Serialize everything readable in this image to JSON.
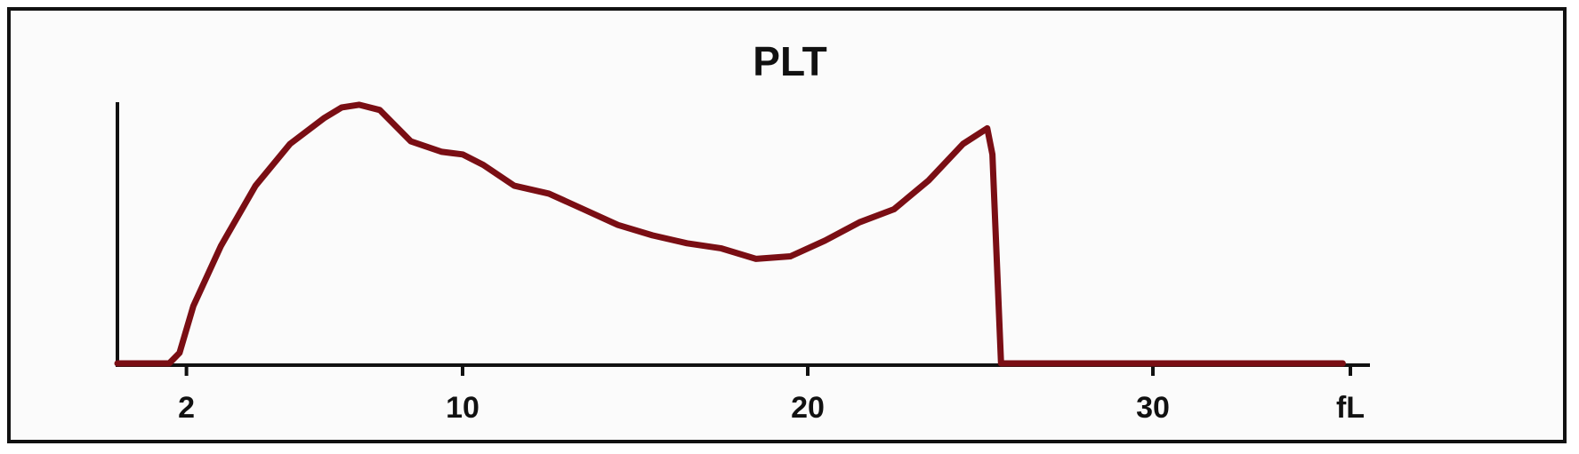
{
  "chart_data": {
    "type": "line",
    "title": "PLT",
    "xlabel": "",
    "ylabel": "",
    "unit_label": "fL",
    "xlim": [
      0,
      35
    ],
    "ylim": [
      0,
      100
    ],
    "xticks": [
      2,
      10,
      20,
      30
    ],
    "grid": false,
    "series": [
      {
        "x": [
          0,
          1.5,
          1.8,
          2.2,
          3,
          4,
          5,
          6,
          6.5,
          7,
          7.6,
          8.5,
          9.4,
          10,
          10.6,
          11.5,
          12.5,
          13.5,
          14.5,
          15.5,
          16.5,
          17.5,
          18.5,
          19.5,
          20.5,
          21.5,
          22.5,
          23.5,
          24.5,
          25.2,
          25.35,
          25.6,
          35.5
        ],
        "y": [
          0,
          0,
          4,
          22,
          45,
          68,
          84,
          94,
          98,
          99,
          97,
          85,
          81,
          80,
          76,
          68,
          65,
          59,
          53,
          49,
          46,
          44,
          40,
          41,
          47,
          54,
          59,
          70,
          84,
          90,
          80,
          0,
          0
        ]
      }
    ]
  },
  "colors": {
    "line": "#7a0e14",
    "axis": "#111111",
    "background": "#fbfbfb"
  }
}
